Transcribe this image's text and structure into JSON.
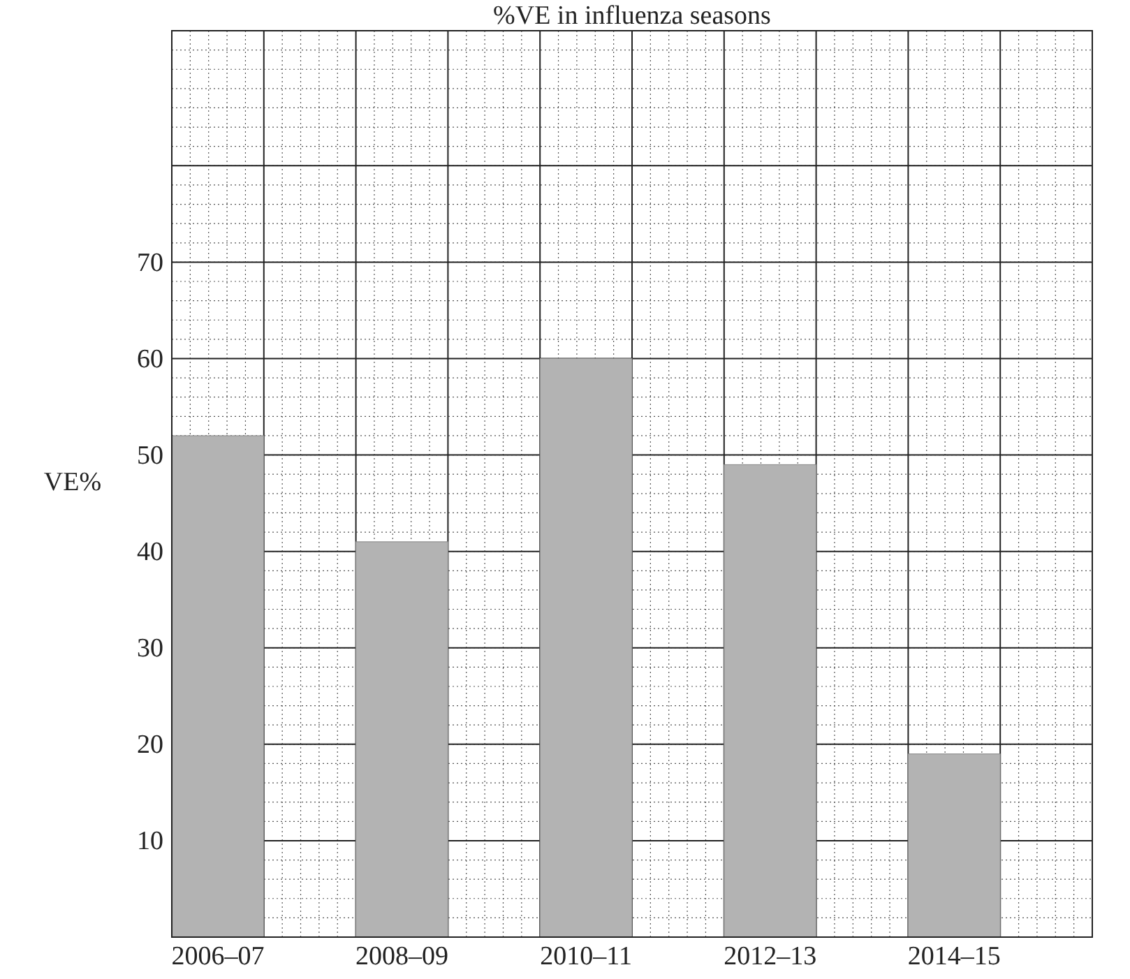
{
  "chart_data": {
    "type": "bar",
    "title": "%VE in influenza seasons",
    "ylabel": "VE%",
    "categories": [
      "2006–07",
      null,
      "2008–09",
      null,
      "2010–11",
      null,
      "2012–13",
      null,
      "2014–15",
      null
    ],
    "values": [
      52,
      null,
      41,
      null,
      60,
      null,
      49,
      null,
      19,
      null
    ],
    "color": "#b3b3b3",
    "ylim": [
      0,
      94
    ],
    "yticks": [
      10,
      20,
      30,
      40,
      50,
      60,
      70,
      {
        "value": 80,
        "label": null
      }
    ],
    "grid": true
  }
}
